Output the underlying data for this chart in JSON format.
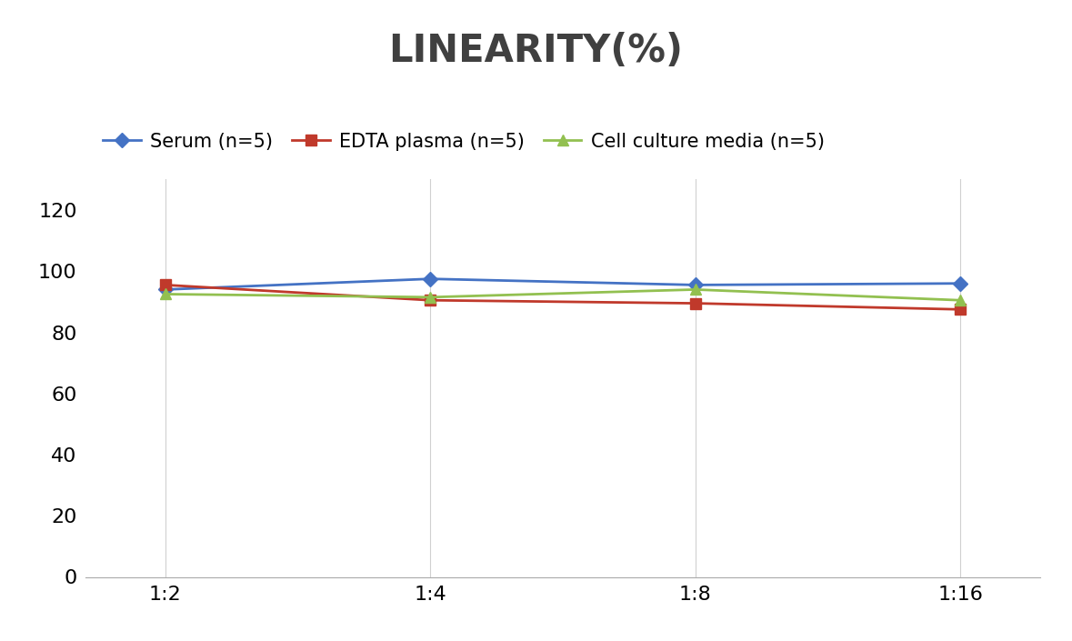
{
  "title": "LINEARITY(%)",
  "x_labels": [
    "1:2",
    "1:4",
    "1:8",
    "1:16"
  ],
  "x_positions": [
    0,
    1,
    2,
    3
  ],
  "series": [
    {
      "label": "Serum (n=5)",
      "values": [
        94,
        97.5,
        95.5,
        96
      ],
      "color": "#4472C4",
      "marker": "D",
      "markersize": 8,
      "linewidth": 2
    },
    {
      "label": "EDTA plasma (n=5)",
      "values": [
        95.5,
        90.5,
        89.5,
        87.5
      ],
      "color": "#C0392B",
      "marker": "s",
      "markersize": 8,
      "linewidth": 2
    },
    {
      "label": "Cell culture media (n=5)",
      "values": [
        92.5,
        91.5,
        94,
        90.5
      ],
      "color": "#92C050",
      "marker": "^",
      "markersize": 8,
      "linewidth": 2
    }
  ],
  "ylim": [
    0,
    130
  ],
  "yticks": [
    0,
    20,
    40,
    60,
    80,
    100,
    120
  ],
  "background_color": "#ffffff",
  "grid_color": "#d0d0d0",
  "title_fontsize": 30,
  "tick_fontsize": 16,
  "legend_fontsize": 15,
  "title_color": "#404040"
}
